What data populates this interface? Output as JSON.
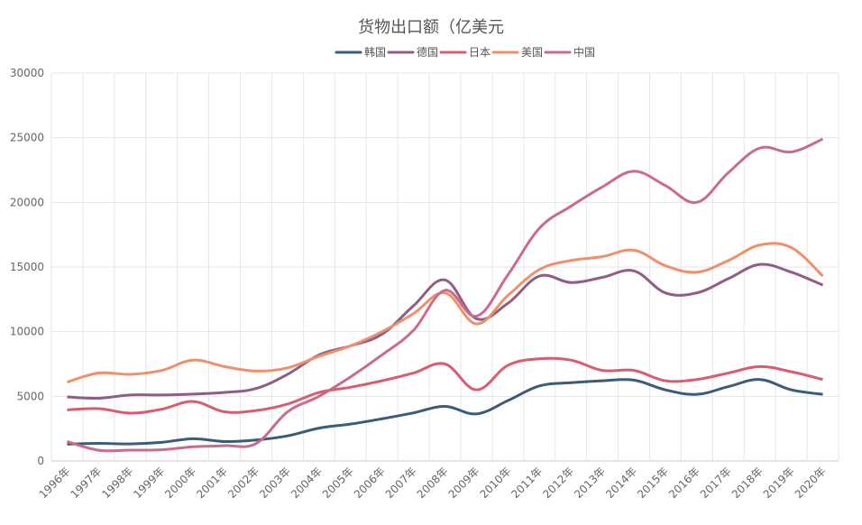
{
  "chart_data": {
    "type": "line",
    "title": "货物出口额（亿美元",
    "categories": [
      "1996年",
      "1997年",
      "1998年",
      "1999年",
      "2000年",
      "2001年",
      "2002年",
      "2003年",
      "2004年",
      "2005年",
      "2006年",
      "2007年",
      "2008年",
      "2009年",
      "2010年",
      "2011年",
      "2012年",
      "2013年",
      "2014年",
      "2015年",
      "2016年",
      "2017年",
      "2018年",
      "2019年",
      "2020年"
    ],
    "ylim": [
      0,
      30000
    ],
    "yticks": [
      0,
      5000,
      10000,
      15000,
      20000,
      25000,
      30000
    ],
    "grid": true,
    "smooth": true,
    "legend_position": "top-center",
    "series": [
      {
        "name": "韩国",
        "color": "#3b5b78",
        "values": [
          1300,
          1360,
          1320,
          1440,
          1720,
          1500,
          1620,
          1940,
          2540,
          2850,
          3260,
          3720,
          4220,
          3640,
          4670,
          5800,
          6050,
          6200,
          6250,
          5500,
          5150,
          5750,
          6300,
          5500,
          5150
        ]
      },
      {
        "name": "德国",
        "color": "#8f5e84",
        "values": [
          4950,
          4850,
          5100,
          5100,
          5170,
          5300,
          5600,
          6700,
          8200,
          8900,
          9800,
          12000,
          14000,
          11000,
          12200,
          14300,
          13800,
          14200,
          14700,
          13000,
          13000,
          14100,
          15200,
          14600,
          13600
        ]
      },
      {
        "name": "日本",
        "color": "#d95d6f",
        "values": [
          3950,
          4050,
          3700,
          4000,
          4600,
          3800,
          3900,
          4400,
          5300,
          5700,
          6200,
          6800,
          7500,
          5500,
          7400,
          7900,
          7800,
          7000,
          7000,
          6200,
          6300,
          6800,
          7300,
          6900,
          6300
        ]
      },
      {
        "name": "美国",
        "color": "#f0906a",
        "values": [
          6100,
          6800,
          6700,
          7000,
          7800,
          7300,
          6950,
          7200,
          8100,
          8900,
          10000,
          11400,
          13000,
          10600,
          12800,
          14800,
          15500,
          15800,
          16300,
          15100,
          14600,
          15500,
          16700,
          16500,
          14300
        ]
      },
      {
        "name": "中国",
        "color": "#c96b8d",
        "values": [
          1500,
          830,
          840,
          860,
          1100,
          1180,
          1350,
          3800,
          5000,
          6500,
          8200,
          10100,
          13200,
          11200,
          14400,
          18000,
          19700,
          21200,
          22400,
          21300,
          20000,
          22300,
          24200,
          23900,
          24900
        ]
      }
    ]
  }
}
